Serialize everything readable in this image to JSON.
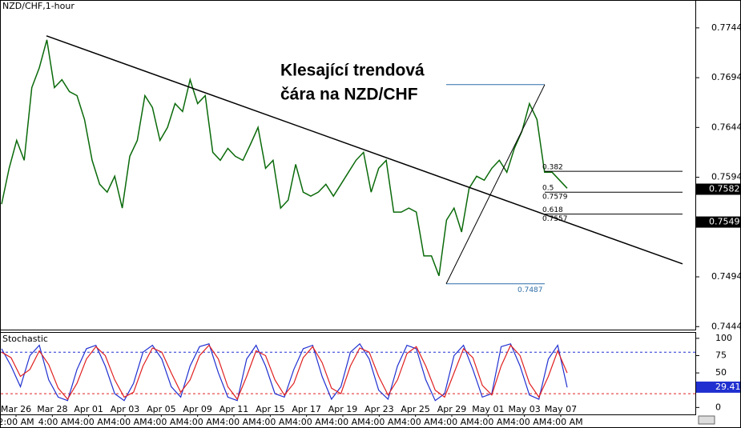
{
  "chart_data": [
    {
      "type": "candle-line",
      "title": "NZD/CHF,1-hour",
      "color": "#0a6a0a",
      "annotation": [
        "Klesající trendová",
        "čára na NZD/CHF"
      ],
      "values": [
        0.7567,
        0.7603,
        0.7631,
        0.7611,
        0.7684,
        0.7704,
        0.7732,
        0.7684,
        0.7692,
        0.768,
        0.7676,
        0.7652,
        0.7611,
        0.7587,
        0.7579,
        0.7595,
        0.7563,
        0.7615,
        0.7631,
        0.7676,
        0.7664,
        0.7631,
        0.7644,
        0.7668,
        0.766,
        0.7692,
        0.7668,
        0.7676,
        0.7619,
        0.7611,
        0.7623,
        0.7615,
        0.7611,
        0.7627,
        0.7644,
        0.7603,
        0.7611,
        0.7563,
        0.7571,
        0.7607,
        0.7579,
        0.7575,
        0.7579,
        0.7587,
        0.7575,
        0.7587,
        0.7599,
        0.7611,
        0.7619,
        0.7579,
        0.7603,
        0.7611,
        0.7559,
        0.7559,
        0.7563,
        0.7559,
        0.7515,
        0.7515,
        0.7495,
        0.7551,
        0.7563,
        0.7539,
        0.7583,
        0.7595,
        0.7591,
        0.7603,
        0.7611,
        0.7599,
        0.7623,
        0.764,
        0.7668,
        0.7652,
        0.7599,
        0.7599,
        0.7591,
        0.7583
      ],
      "ylim": [
        0.7441,
        0.7772
      ],
      "yticks": [
        0.7444,
        0.7494,
        0.7594,
        0.7644,
        0.7694,
        0.7744
      ],
      "trendline": [
        0.7736,
        0.7507
      ],
      "fib_range": [
        0.7487,
        0.7687
      ],
      "fib_levels": [
        {
          "ratio": "0.382",
          "price": 0.76
        },
        {
          "ratio": "0.5",
          "price": 0.7579
        },
        {
          "ratio": "0.618",
          "price": 0.7557
        }
      ],
      "price_markers": [
        0.7582,
        0.7549
      ],
      "xtick_dates": [
        "Mar 26",
        "Mar 28",
        "Apr 01",
        "Apr 03",
        "Apr 05",
        "Apr 09",
        "Apr 11",
        "Apr 15",
        "Apr 17",
        "Apr 19",
        "Apr 23",
        "Apr 25",
        "Apr 29",
        "May 01",
        "May 03",
        "May 07"
      ],
      "xtick_times": [
        "2:00 AM",
        "4:00 AM",
        "4:00 AM",
        "4:00 AM",
        "4:00 AM",
        "4:00 AM",
        "4:00 AM",
        "4:00 AM",
        "4:00 AM",
        "4:00 AM",
        "4:00 AM",
        "4:00 AM",
        "4:00 AM",
        "4:00 AM",
        "4:00 AM",
        "4:00 AM"
      ]
    },
    {
      "type": "stochastic",
      "title": "Stochastic",
      "series": [
        {
          "name": "%K",
          "color": "#2030d0",
          "values": [
            85,
            60,
            30,
            75,
            90,
            40,
            15,
            10,
            55,
            85,
            90,
            60,
            20,
            10,
            35,
            80,
            90,
            70,
            30,
            15,
            60,
            88,
            92,
            50,
            15,
            10,
            70,
            90,
            60,
            20,
            15,
            55,
            85,
            90,
            45,
            12,
            30,
            80,
            92,
            70,
            25,
            12,
            60,
            90,
            85,
            40,
            10,
            20,
            75,
            90,
            55,
            15,
            20,
            88,
            92,
            60,
            18,
            12,
            70,
            90,
            29
          ]
        },
        {
          "name": "%D",
          "color": "#e02020",
          "values": [
            80,
            72,
            45,
            55,
            82,
            62,
            28,
            12,
            35,
            70,
            88,
            75,
            40,
            15,
            22,
            60,
            86,
            80,
            50,
            22,
            40,
            75,
            90,
            70,
            30,
            12,
            45,
            82,
            75,
            40,
            18,
            35,
            72,
            88,
            65,
            28,
            20,
            60,
            86,
            80,
            45,
            18,
            40,
            78,
            88,
            60,
            25,
            15,
            50,
            85,
            72,
            32,
            18,
            60,
            90,
            75,
            35,
            15,
            45,
            82,
            50
          ]
        }
      ],
      "ylim": [
        -10,
        108
      ],
      "yticks": [
        0,
        50,
        75,
        100
      ],
      "levels": [
        {
          "value": 80,
          "color": "#2030d0"
        },
        {
          "value": 20,
          "color": "#e02020"
        }
      ],
      "marker": 29.41
    }
  ]
}
